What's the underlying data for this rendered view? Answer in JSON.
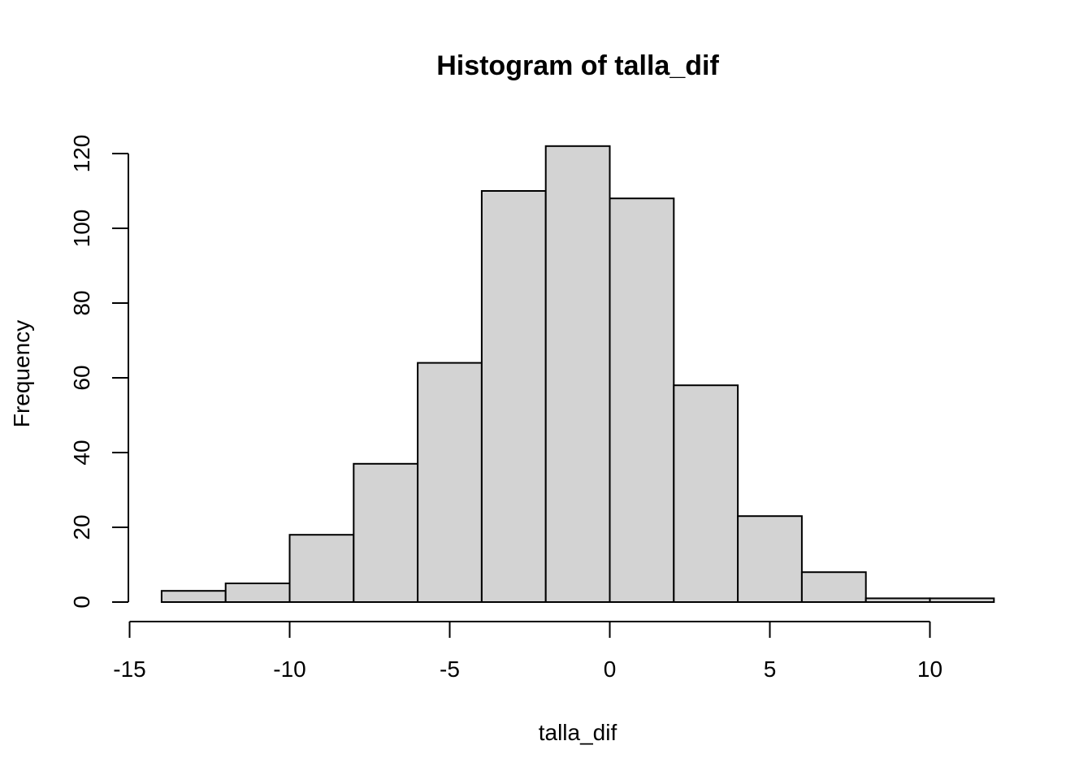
{
  "chart_data": {
    "type": "histogram",
    "title": "Histogram of talla_dif",
    "xlabel": "talla_dif",
    "ylabel": "Frequency",
    "bins": [
      {
        "x0": -14,
        "x1": -12,
        "count": 3
      },
      {
        "x0": -12,
        "x1": -10,
        "count": 5
      },
      {
        "x0": -10,
        "x1": -8,
        "count": 18
      },
      {
        "x0": -8,
        "x1": -6,
        "count": 37
      },
      {
        "x0": -6,
        "x1": -4,
        "count": 64
      },
      {
        "x0": -4,
        "x1": -2,
        "count": 110
      },
      {
        "x0": -2,
        "x1": 0,
        "count": 122
      },
      {
        "x0": 0,
        "x1": 2,
        "count": 108
      },
      {
        "x0": 2,
        "x1": 4,
        "count": 58
      },
      {
        "x0": 4,
        "x1": 6,
        "count": 23
      },
      {
        "x0": 6,
        "x1": 8,
        "count": 8
      },
      {
        "x0": 8,
        "x1": 10,
        "count": 1
      },
      {
        "x0": 10,
        "x1": 12,
        "count": 1
      }
    ],
    "xticks": [
      -15,
      -10,
      -5,
      0,
      5,
      10
    ],
    "xtick_labels": [
      "-15",
      "-10",
      "-5",
      "0",
      "5",
      "10"
    ],
    "yticks": [
      0,
      20,
      40,
      60,
      80,
      100,
      120
    ],
    "ytick_labels": [
      "0",
      "20",
      "40",
      "60",
      "80",
      "100",
      "120"
    ],
    "xlim": [
      -15,
      12
    ],
    "ylim": [
      0,
      122
    ],
    "bar_color": "#d3d3d3",
    "grid": false
  }
}
